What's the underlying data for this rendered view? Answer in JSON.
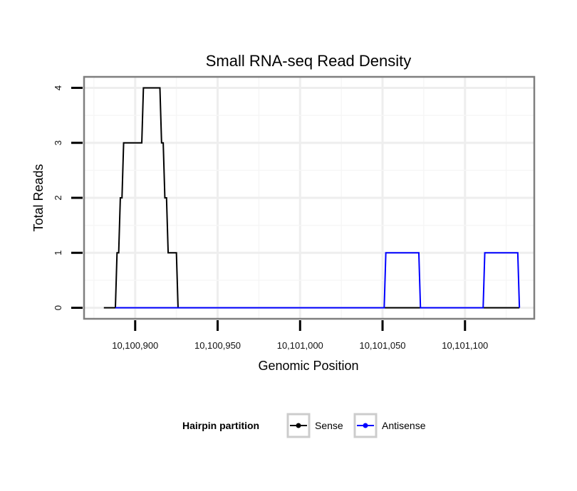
{
  "chart_data": {
    "type": "line",
    "title": "Small RNA-seq Read Density",
    "xlabel": "Genomic Position",
    "ylabel": "Total Reads",
    "xlim": [
      10100869,
      10101142
    ],
    "ylim": [
      -0.2,
      4.2
    ],
    "x_ticks": [
      10100900,
      10100950,
      10101000,
      10101050,
      10101100
    ],
    "x_tick_labels": [
      "10,100,900",
      "10,100,950",
      "10,101,000",
      "10,101,050",
      "10,101,100"
    ],
    "y_ticks": [
      0,
      1,
      2,
      3,
      4
    ],
    "y_tick_labels": [
      "0",
      "1",
      "2",
      "3",
      "4"
    ],
    "grid": true,
    "legend": {
      "title": "Hairpin partition",
      "placement": "bottom"
    },
    "series": [
      {
        "name": "Sense",
        "color": "#000000",
        "x": [
          10100881,
          10100888,
          10100889,
          10100890,
          10100891,
          10100892,
          10100893,
          10100894,
          10100897,
          10100898,
          10100904,
          10100905,
          10100915,
          10100916,
          10100917,
          10100918,
          10100919,
          10100920,
          10100921,
          10100925,
          10100926,
          10100946,
          10101133
        ],
        "y": [
          0,
          0,
          1,
          1,
          2,
          2,
          3,
          3,
          3,
          3,
          3,
          4,
          4,
          3,
          3,
          2,
          2,
          1,
          1,
          1,
          0,
          0,
          0
        ]
      },
      {
        "name": "Antisense",
        "color": "#0000ff",
        "x": [
          10100888,
          10100926,
          10101051,
          10101052,
          10101072,
          10101073,
          10101111,
          10101112,
          10101132,
          10101133
        ],
        "y": [
          0,
          0,
          0,
          1,
          1,
          0,
          0,
          1,
          1,
          0
        ]
      }
    ]
  }
}
